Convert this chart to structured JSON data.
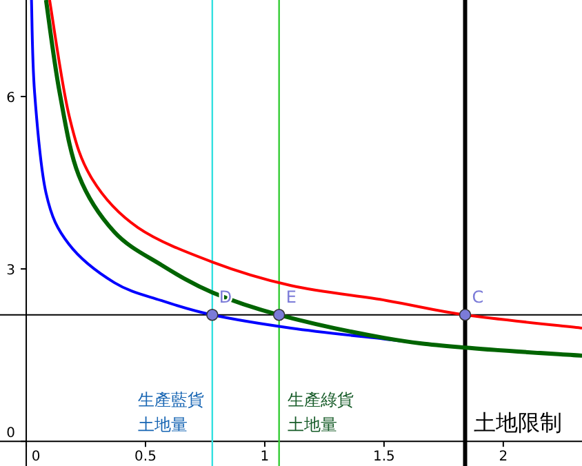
{
  "chart_data": {
    "type": "line",
    "xlim": [
      -0.11,
      2.33
    ],
    "ylim": [
      -0.43,
      7.68
    ],
    "xticks": [
      0,
      0.5,
      1,
      1.5,
      2
    ],
    "yticks": [
      0,
      3,
      6
    ],
    "marker": "none",
    "series": [
      {
        "color": "#0000ff",
        "x": [
          0.022,
          0.035,
          0.083,
          0.179,
          0.37,
          0.566,
          0.78,
          1.11,
          1.5,
          1.84,
          2.33
        ],
        "values": [
          7.68,
          6.07,
          4.32,
          3.43,
          2.76,
          2.45,
          2.2,
          1.97,
          1.78,
          1.63,
          1.49
        ]
      },
      {
        "color": "#006400",
        "x": [
          0.083,
          0.14,
          0.22,
          0.37,
          0.566,
          0.78,
          1.06,
          1.5,
          1.84,
          2.33
        ],
        "values": [
          7.68,
          6.07,
          4.63,
          3.64,
          3.07,
          2.59,
          2.2,
          1.8,
          1.63,
          1.49
        ]
      },
      {
        "color": "#ff0000",
        "x": [
          0.098,
          0.179,
          0.277,
          0.468,
          0.78,
          1.11,
          1.51,
          1.84,
          2.33
        ],
        "values": [
          7.68,
          5.68,
          4.56,
          3.72,
          3.12,
          2.71,
          2.45,
          2.2,
          1.97
        ]
      },
      {
        "type": "scatter",
        "marker": "circle",
        "color": "#7b7bd8",
        "x": [
          0.78,
          1.06,
          1.84
        ],
        "values": [
          2.2,
          2.2,
          2.2
        ]
      }
    ],
    "ref_lines": [
      {
        "axis": "y",
        "value": 2.2,
        "color": "#000000"
      },
      {
        "axis": "x",
        "value": 0.78,
        "color": "#33e0e0",
        "label": "生產藍貨土地量"
      },
      {
        "axis": "x",
        "value": 1.06,
        "color": "#33cc33",
        "label": "生產綠貨土地量"
      },
      {
        "axis": "x",
        "value": 1.84,
        "color": "#000000",
        "label": "土地限制"
      }
    ],
    "annotations": [
      {
        "text": "D",
        "x": 0.78,
        "y": 2.2
      },
      {
        "text": "E",
        "x": 1.06,
        "y": 2.2
      },
      {
        "text": "C",
        "x": 1.84,
        "y": 2.2
      }
    ]
  }
}
